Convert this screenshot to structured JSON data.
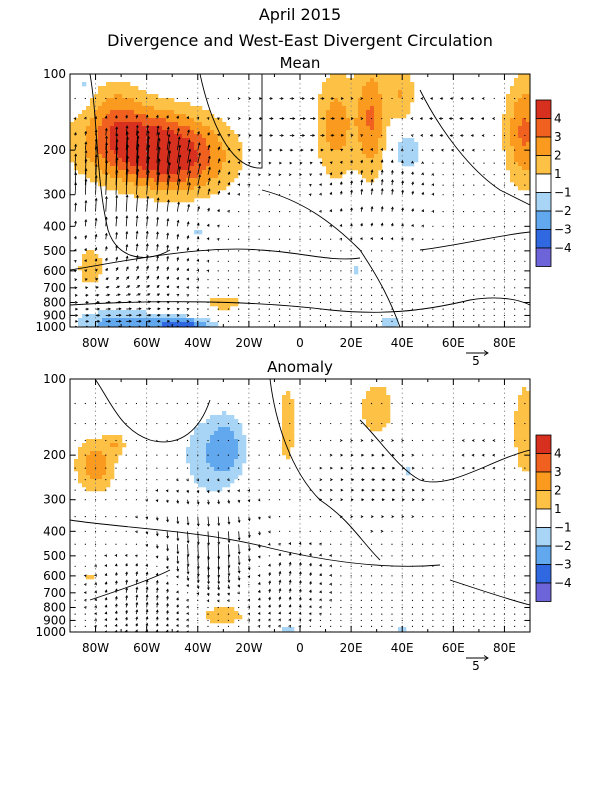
{
  "title": "April 2015",
  "subtitle": "Divergence and West-East Divergent Circulation",
  "colorbar": {
    "labels": [
      "4",
      "3",
      "2",
      "1",
      "−1",
      "−2",
      "−3",
      "−4"
    ],
    "colors": [
      "#d7301f",
      "#f0601f",
      "#fa9a1e",
      "#fdc145",
      "#ffffff",
      "#a8d5f5",
      "#62a8ee",
      "#2f68e0",
      "#6e64d9"
    ]
  },
  "chart_data": [
    {
      "type": "heatmap",
      "title": "Mean",
      "x_ticks": [
        "80W",
        "60W",
        "40W",
        "20W",
        "0",
        "20E",
        "40E",
        "60E",
        "80E"
      ],
      "x_tick_values": [
        -80,
        -60,
        -40,
        -20,
        0,
        20,
        40,
        60,
        80
      ],
      "xlim": [
        -90,
        90
      ],
      "y_ticks": [
        "100",
        "200",
        "300",
        "400",
        "500",
        "600",
        "700",
        "800",
        "900",
        "1000"
      ],
      "y_tick_values": [
        100,
        200,
        300,
        400,
        500,
        600,
        700,
        800,
        900,
        1000
      ],
      "ylim": [
        1000,
        100
      ],
      "y_scale": "log",
      "reference_vector_label": "5",
      "blobs": [
        {
          "lon": -60,
          "p": 190,
          "rlon": 26,
          "rp": 0.35,
          "v": 4.4
        },
        {
          "lon": -45,
          "p": 230,
          "rlon": 20,
          "rp": 0.3,
          "v": 2.0
        },
        {
          "lon": -72,
          "p": 140,
          "rlon": 10,
          "rp": 0.35,
          "v": 1.5
        },
        {
          "lon": 14,
          "p": 160,
          "rlon": 8,
          "rp": 0.5,
          "v": 2.5
        },
        {
          "lon": 28,
          "p": 150,
          "rlon": 6,
          "rp": 0.55,
          "v": 3.0
        },
        {
          "lon": 40,
          "p": 120,
          "rlon": 5,
          "rp": 0.3,
          "v": 2.0
        },
        {
          "lon": 88,
          "p": 170,
          "rlon": 8,
          "rp": 0.5,
          "v": 3.2
        },
        {
          "lon": -82,
          "p": 580,
          "rlon": 5,
          "rp": 0.18,
          "v": 2.0
        },
        {
          "lon": -30,
          "p": 800,
          "rlon": 8,
          "rp": 0.08,
          "v": 1.6
        },
        {
          "lon": 42,
          "p": 200,
          "rlon": 6,
          "rp": 0.2,
          "v": -1.8
        },
        {
          "lon": -85,
          "p": 110,
          "rlon": 3,
          "rp": 0.15,
          "v": -1.4
        },
        {
          "lon": -40,
          "p": 420,
          "rlon": 3,
          "rp": 0.06,
          "v": -1.3
        },
        {
          "lon": 22,
          "p": 600,
          "rlon": 3,
          "rp": 0.07,
          "v": -1.3
        },
        {
          "lon": -70,
          "p": 960,
          "rlon": 18,
          "rp": 0.12,
          "v": -2.5
        },
        {
          "lon": -45,
          "p": 1000,
          "rlon": 12,
          "rp": 0.08,
          "v": -3.6
        },
        {
          "lon": 35,
          "p": 960,
          "rlon": 5,
          "rp": 0.1,
          "v": -1.4
        }
      ],
      "vectors": [
        {
          "lon": -80,
          "p": 300,
          "u": 0,
          "w": 3
        },
        {
          "lon": -70,
          "p": 250,
          "u": 0,
          "w": 4
        },
        {
          "lon": -60,
          "p": 250,
          "u": 0,
          "w": 4
        },
        {
          "lon": -50,
          "p": 250,
          "u": 1,
          "w": 3
        },
        {
          "lon": 30,
          "p": 300,
          "u": 0,
          "w": 2
        },
        {
          "lon": -60,
          "p": 500,
          "u": 0,
          "w": 2
        },
        {
          "lon": -70,
          "p": 900,
          "u": 2,
          "w": 0
        },
        {
          "lon": 0,
          "p": 150,
          "u": 2,
          "w": 0
        },
        {
          "lon": 60,
          "p": 150,
          "u": -2,
          "w": 0
        }
      ]
    },
    {
      "type": "heatmap",
      "title": "Anomaly",
      "x_ticks": [
        "80W",
        "60W",
        "40W",
        "20W",
        "0",
        "20E",
        "40E",
        "60E",
        "80E"
      ],
      "x_tick_values": [
        -80,
        -60,
        -40,
        -20,
        0,
        20,
        40,
        60,
        80
      ],
      "xlim": [
        -90,
        90
      ],
      "y_ticks": [
        "100",
        "200",
        "300",
        "400",
        "500",
        "600",
        "700",
        "800",
        "900",
        "1000"
      ],
      "y_tick_values": [
        100,
        200,
        300,
        400,
        500,
        600,
        700,
        800,
        900,
        1000
      ],
      "ylim": [
        1000,
        100
      ],
      "y_scale": "log",
      "reference_vector_label": "5",
      "blobs": [
        {
          "lon": -80,
          "p": 220,
          "rlon": 8,
          "rp": 0.25,
          "v": 2.6
        },
        {
          "lon": -72,
          "p": 180,
          "rlon": 4,
          "rp": 0.1,
          "v": 1.5
        },
        {
          "lon": -5,
          "p": 150,
          "rlon": 4,
          "rp": 0.45,
          "v": 1.6
        },
        {
          "lon": 30,
          "p": 130,
          "rlon": 8,
          "rp": 0.3,
          "v": 1.6
        },
        {
          "lon": 88,
          "p": 160,
          "rlon": 5,
          "rp": 0.5,
          "v": 1.8
        },
        {
          "lon": -30,
          "p": 860,
          "rlon": 10,
          "rp": 0.1,
          "v": 1.6
        },
        {
          "lon": -82,
          "p": 610,
          "rlon": 2,
          "rp": 0.04,
          "v": 1.5
        },
        {
          "lon": -34,
          "p": 200,
          "rlon": 12,
          "rp": 0.38,
          "v": -2.0
        },
        {
          "lon": -28,
          "p": 180,
          "rlon": 6,
          "rp": 0.25,
          "v": -1.4
        },
        {
          "lon": 42,
          "p": 230,
          "rlon": 2,
          "rp": 0.05,
          "v": -1.3
        },
        {
          "lon": -5,
          "p": 980,
          "rlon": 4,
          "rp": 0.05,
          "v": -1.4
        },
        {
          "lon": 40,
          "p": 970,
          "rlon": 2,
          "rp": 0.06,
          "v": -1.3
        }
      ],
      "vectors": [
        {
          "lon": -30,
          "p": 500,
          "u": 0,
          "w": -3
        },
        {
          "lon": -40,
          "p": 420,
          "u": 0,
          "w": -3
        },
        {
          "lon": -10,
          "p": 600,
          "u": 0,
          "w": 2
        },
        {
          "lon": -60,
          "p": 700,
          "u": 0,
          "w": 2
        },
        {
          "lon": 30,
          "p": 250,
          "u": 1,
          "w": 0
        },
        {
          "lon": 70,
          "p": 200,
          "u": -1,
          "w": 0
        }
      ]
    }
  ]
}
